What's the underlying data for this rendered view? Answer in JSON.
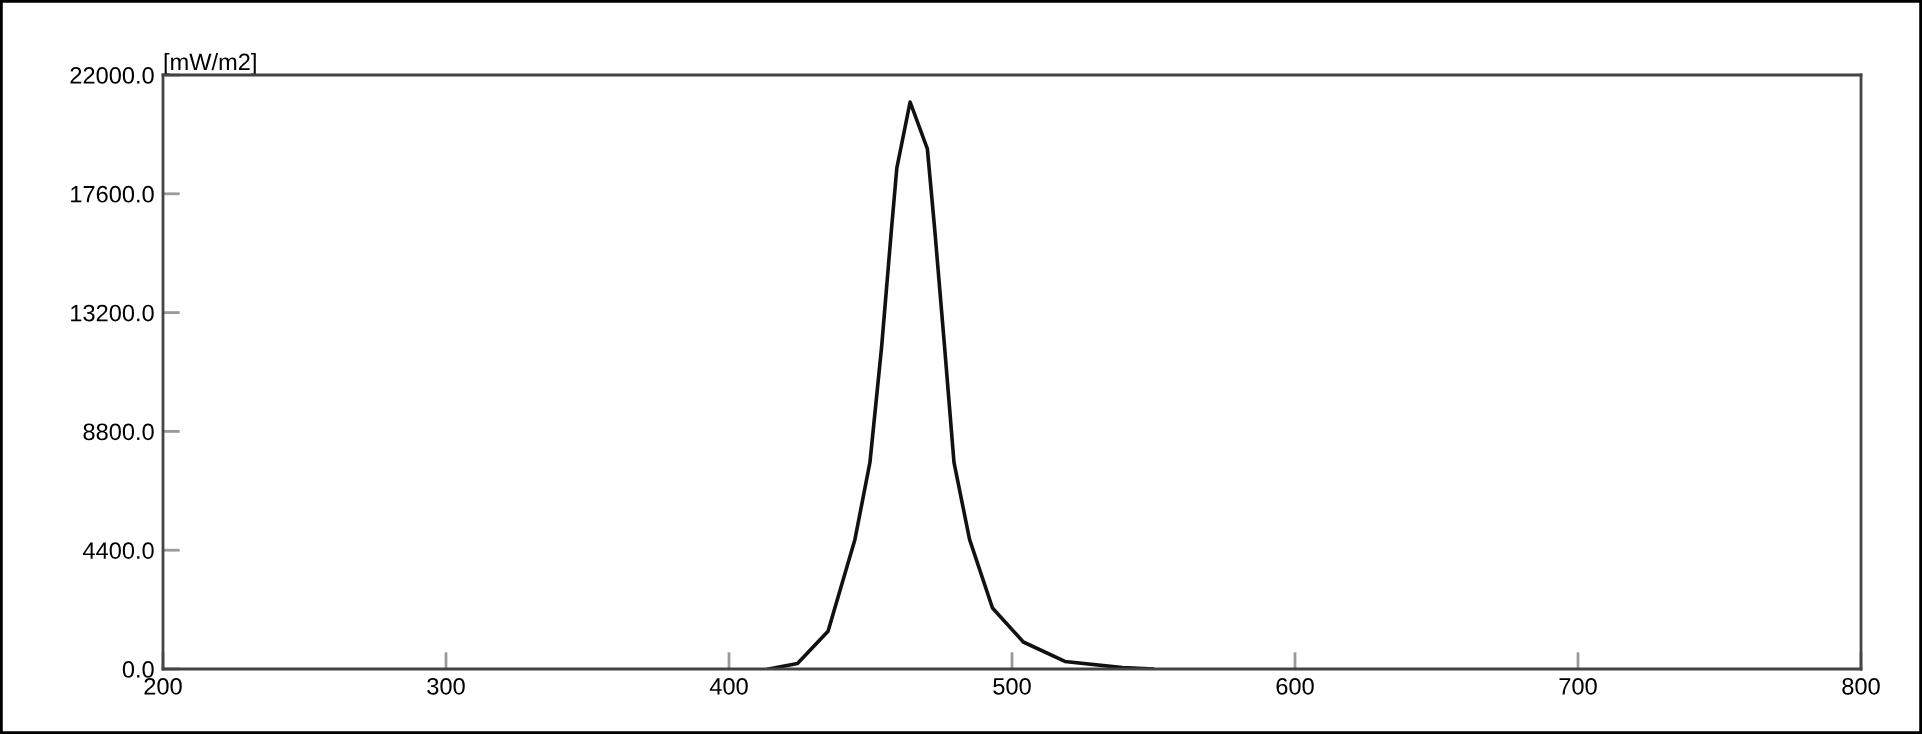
{
  "chart_data": {
    "type": "line",
    "ylabel": "[mW/m2]",
    "series": [
      {
        "color": "#111111",
        "x": [
          414,
          424.2,
          435,
          444.5,
          449.8,
          453.9,
          457.3,
          459.3,
          464,
          470.1,
          472.8,
          476.2,
          479.5,
          485,
          493.1,
          504,
          518.7,
          539,
          549.5
        ],
        "values": [
          0,
          200,
          1400,
          4800,
          7650,
          11900,
          16150,
          18550,
          21000,
          19260,
          16150,
          11900,
          7650,
          4800,
          2260,
          1000,
          280,
          50,
          0
        ]
      }
    ],
    "xlim": [
      200,
      800
    ],
    "xticks": [
      200,
      300,
      400,
      500,
      600,
      700,
      800
    ],
    "ylim": [
      0,
      22000
    ],
    "yticks": [
      {
        "value": 0,
        "label": "0.0"
      },
      {
        "value": 4400,
        "label": "4400.0"
      },
      {
        "value": 8800,
        "label": "8800.0"
      },
      {
        "value": 13200,
        "label": "13200.0"
      },
      {
        "value": 17600,
        "label": "17600.0"
      },
      {
        "value": 22000,
        "label": "22000.0"
      }
    ],
    "grid": false,
    "legend": false,
    "marker": "none",
    "line_style": "solid"
  }
}
